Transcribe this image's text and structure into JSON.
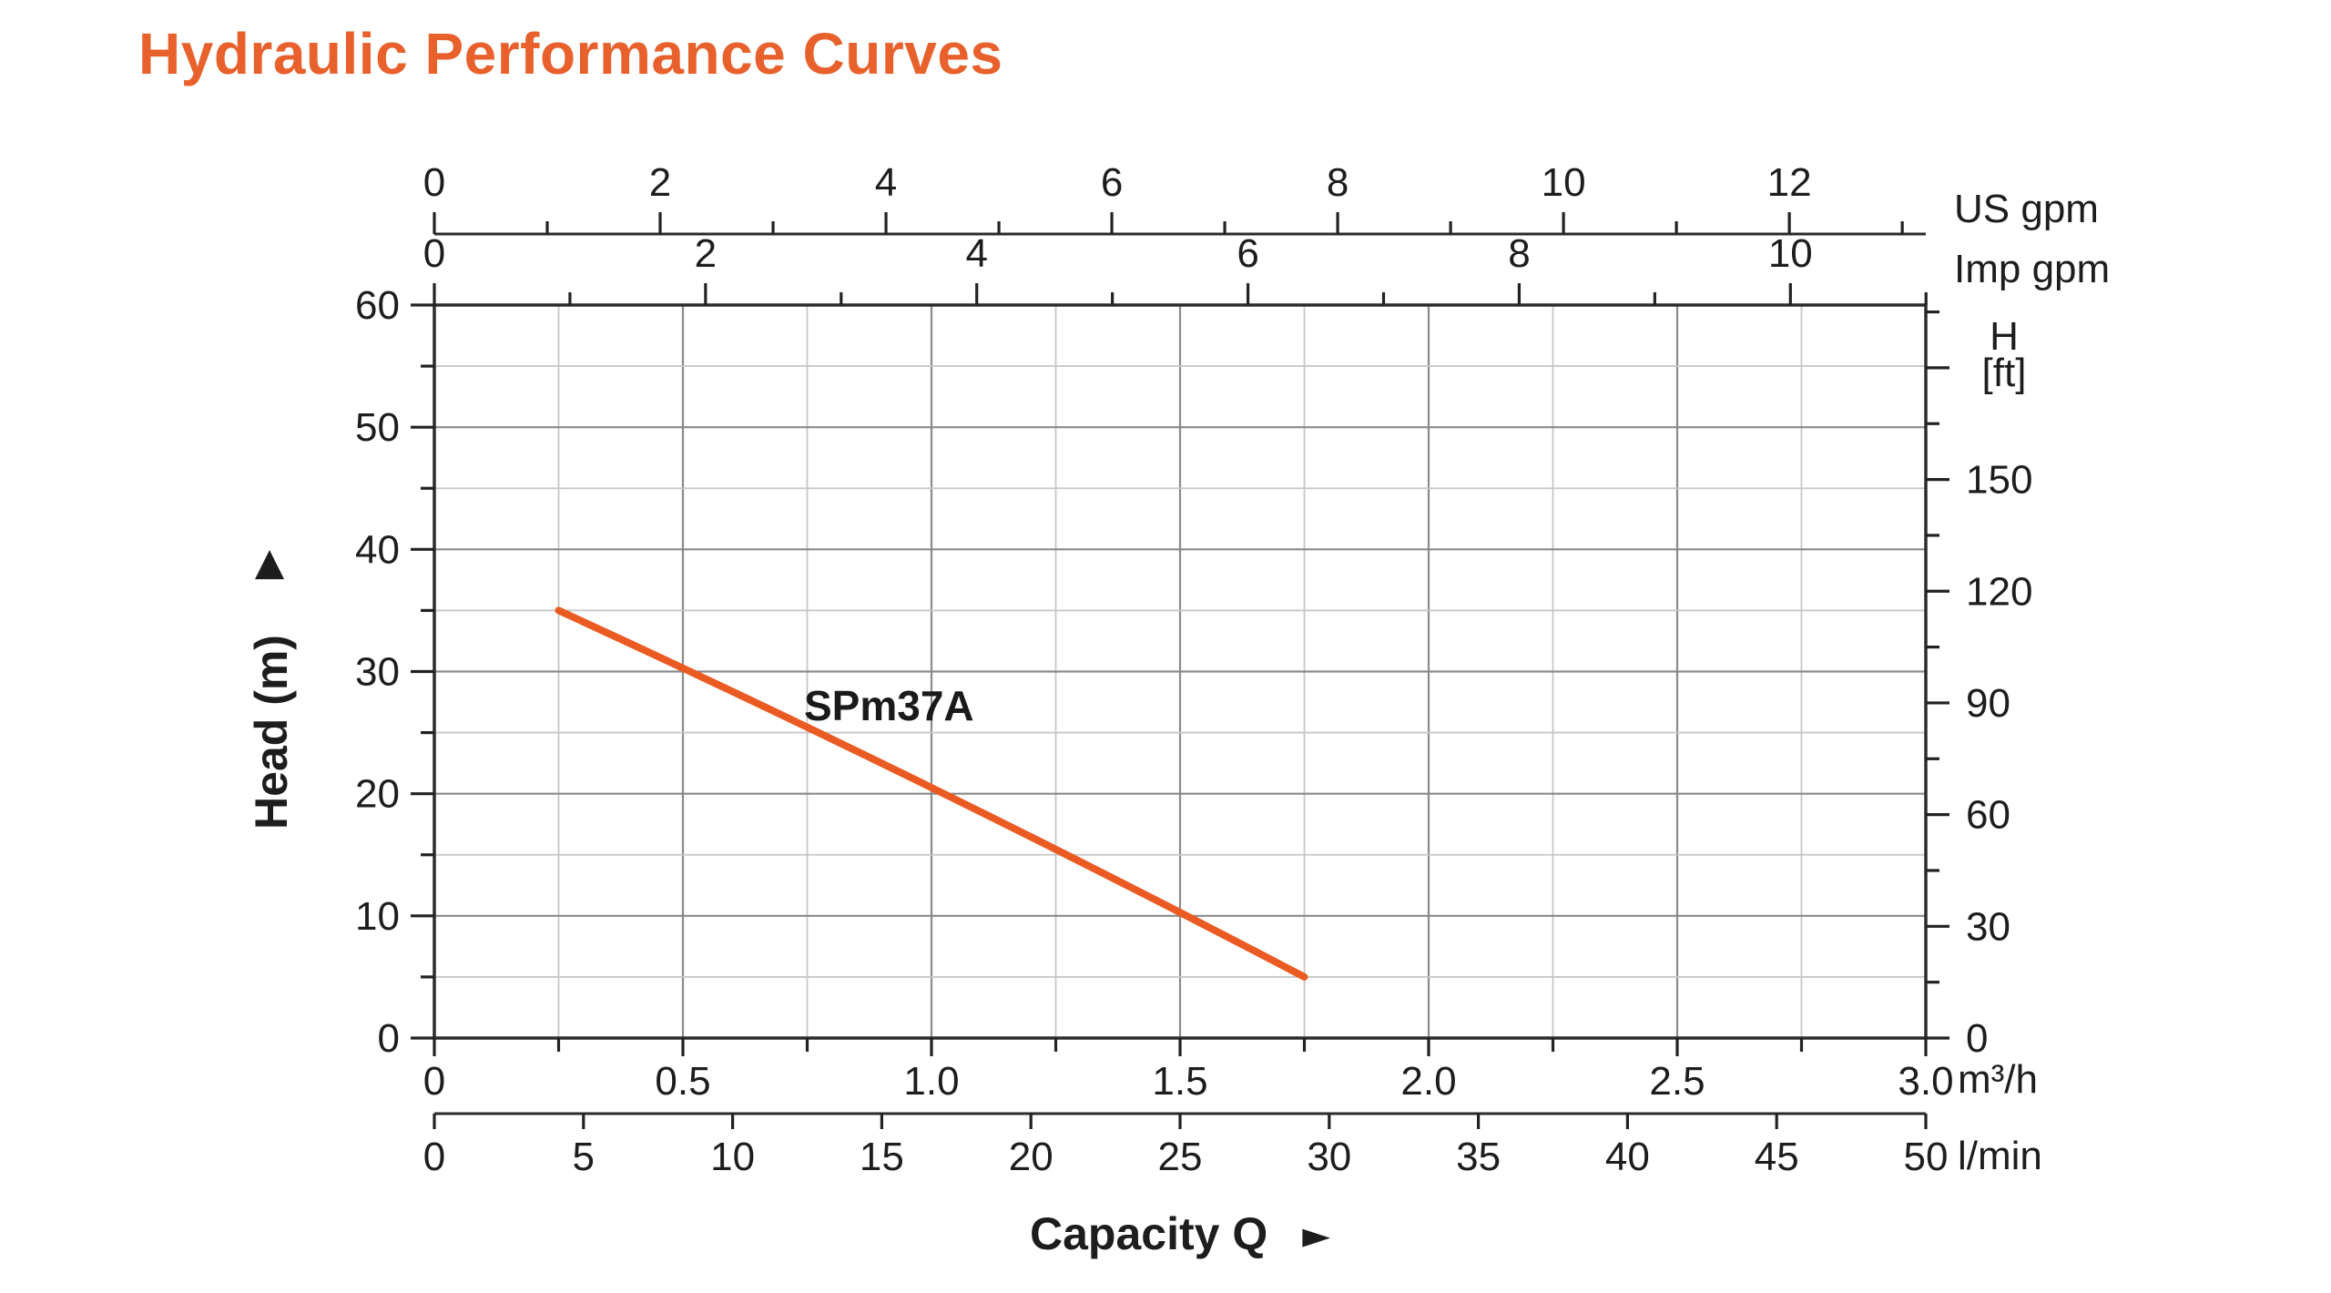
{
  "page": {
    "title": "Hydraulic Performance Curves",
    "title_color": "#E8612C",
    "background": "#FFFFFF"
  },
  "chart_data": {
    "type": "line",
    "title": "Hydraulic Performance Curves",
    "series": [
      {
        "name": "SPm37A",
        "color": "#EA5B23",
        "points": [
          {
            "q_m3h": 0.25,
            "head_m": 35.0
          },
          {
            "q_m3h": 0.5,
            "head_m": 30.5
          },
          {
            "q_m3h": 0.75,
            "head_m": 25.7
          },
          {
            "q_m3h": 1.0,
            "head_m": 20.5
          },
          {
            "q_m3h": 1.25,
            "head_m": 15.5
          },
          {
            "q_m3h": 1.5,
            "head_m": 10.5
          },
          {
            "q_m3h": 1.75,
            "head_m": 5.0
          }
        ]
      }
    ],
    "axes": {
      "top_us_gpm": {
        "unit": "US gpm",
        "min": 0,
        "max": 13.2,
        "labeled_ticks": [
          0,
          2,
          4,
          6,
          8,
          10,
          12
        ],
        "minor_tick_step": 1,
        "m3h_per_unit": 0.2271247
      },
      "top_imp_gpm": {
        "unit": "Imp gpm",
        "min": 0,
        "max": 11,
        "labeled_ticks": [
          0,
          2,
          4,
          6,
          8,
          10
        ],
        "minor_tick_step": 1,
        "m3h_per_unit": 0.2727652
      },
      "left_head_m": {
        "title": "Head (m)",
        "min": 0,
        "max": 60,
        "labeled_ticks": [
          0,
          10,
          20,
          30,
          40,
          50,
          60
        ],
        "minor_tick_step": 5
      },
      "right_head_ft": {
        "title_line1": "H",
        "title_line2": "[ft]",
        "min": 0,
        "max": 195,
        "labeled_ticks": [
          0,
          30,
          60,
          90,
          120,
          150
        ],
        "minor_tick_step": 15,
        "m_per_unit": 0.3048
      },
      "bottom_m3h": {
        "unit": "m³/h",
        "min": 0,
        "max": 3,
        "labels": [
          "0",
          "0.5",
          "1.0",
          "1.5",
          "2.0",
          "2.5",
          "3.0"
        ],
        "labeled_step": 0.5,
        "minor_tick_step": 0.25
      },
      "bottom_lmin": {
        "unit": "l/min",
        "min": 0,
        "max": 50,
        "labeled_ticks": [
          0,
          5,
          10,
          15,
          20,
          25,
          30,
          35,
          40,
          45,
          50
        ]
      }
    },
    "x_axis_title": "Capacity Q",
    "x_axis_arrow": "►",
    "y_axis_arrow": "▲",
    "grid": {
      "vertical_step_m3h": 0.25,
      "horizontal_step_m": 5,
      "major_color": "#8A8A8A",
      "minor_color": "#C7C7C7",
      "border_color": "#2B2B2B",
      "tick_color": "#222222"
    },
    "layout_hints": {
      "grid": "on",
      "legend": "inline-label"
    }
  }
}
